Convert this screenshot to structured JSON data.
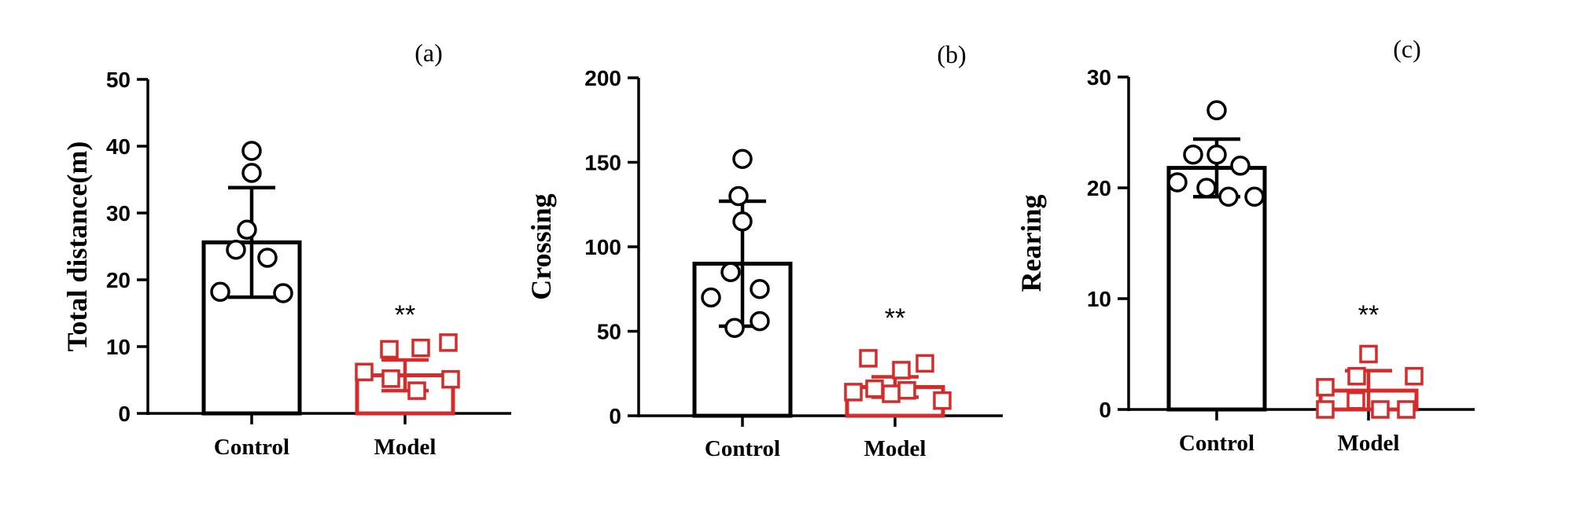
{
  "figure": {
    "colors": {
      "control": "#000000",
      "model": "#d42b2b",
      "axis": "#000000"
    }
  },
  "chart_data": [
    {
      "type": "bar",
      "panel_label": "(a)",
      "ylabel": "Total distance(m)",
      "ylim": [
        0,
        50
      ],
      "yticks": [
        "0",
        "10",
        "20",
        "30",
        "40",
        "50"
      ],
      "categories": [
        "Control",
        "Model"
      ],
      "means": [
        25.6,
        5.7
      ],
      "sd": [
        8.2,
        2.3
      ],
      "significance": [
        "",
        "**"
      ],
      "points": [
        [
          39.3,
          36.0,
          27.5,
          24.5,
          23.3,
          18.2,
          18.0
        ],
        [
          10.6,
          9.8,
          9.6,
          6.2,
          5.2,
          5.1,
          3.4
        ]
      ]
    },
    {
      "type": "bar",
      "panel_label": "(b)",
      "ylabel": "Crossing",
      "ylim": [
        0,
        200
      ],
      "yticks": [
        "0",
        "50",
        "100",
        "150",
        "200"
      ],
      "categories": [
        "Control",
        "Model"
      ],
      "means": [
        90,
        17
      ],
      "sd": [
        37,
        6
      ],
      "significance": [
        "",
        "**"
      ],
      "points": [
        [
          152,
          130,
          115,
          85,
          75,
          70,
          56,
          52
        ],
        [
          34,
          31,
          27,
          16,
          15,
          14,
          13,
          9
        ]
      ]
    },
    {
      "type": "bar",
      "panel_label": "(c)",
      "ylabel": "Rearing",
      "ylim": [
        0,
        30
      ],
      "yticks": [
        "0",
        "10",
        "20",
        "30"
      ],
      "categories": [
        "Control",
        "Model"
      ],
      "means": [
        21.8,
        1.7
      ],
      "sd": [
        2.6,
        1.8
      ],
      "significance": [
        "",
        "**"
      ],
      "points": [
        [
          27.0,
          23.0,
          23.0,
          22.0,
          20.5,
          20.0,
          19.2,
          19.2
        ],
        [
          5.0,
          3.0,
          3.0,
          2.0,
          0.8,
          0.0,
          0.0,
          0.0
        ]
      ]
    }
  ]
}
